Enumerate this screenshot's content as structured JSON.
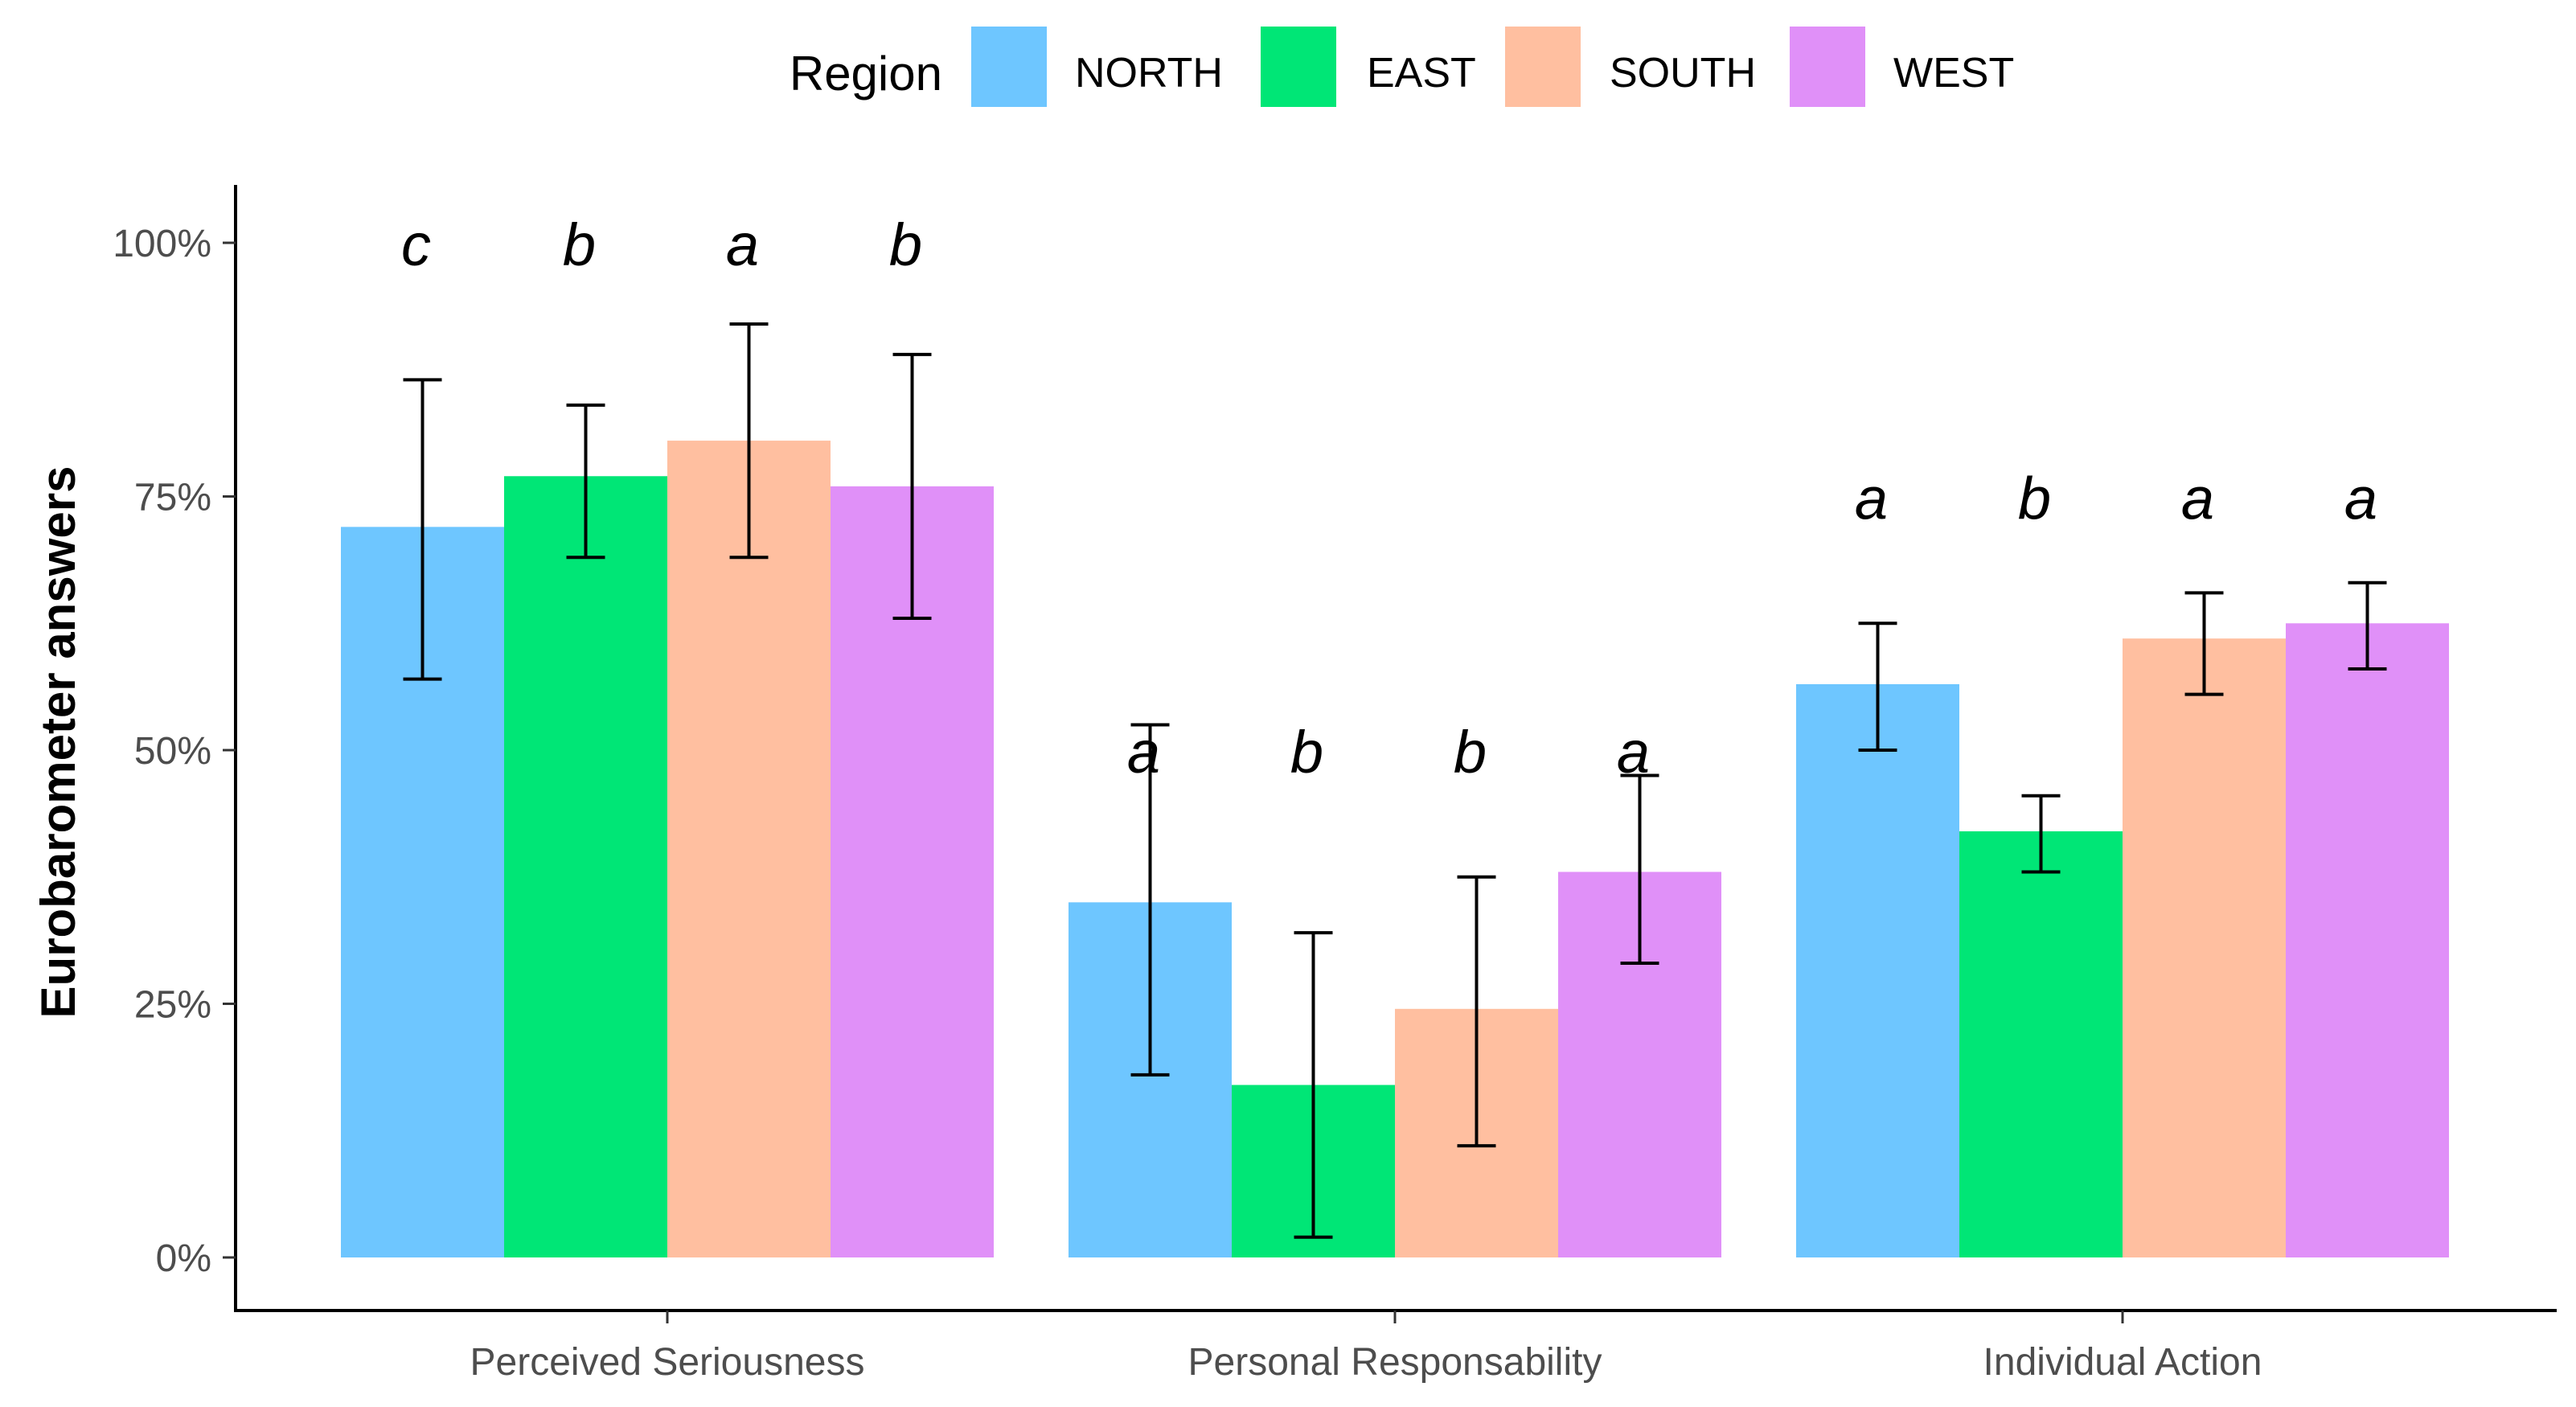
{
  "chart_data": {
    "type": "bar",
    "title": "",
    "xlabel": "",
    "ylabel": "Eurobarometer answers",
    "ylim": [
      0,
      1
    ],
    "yticks": [
      {
        "value": 0,
        "label": "0%"
      },
      {
        "value": 0.25,
        "label": "25%"
      },
      {
        "value": 0.5,
        "label": "50%"
      },
      {
        "value": 0.75,
        "label": "75%"
      },
      {
        "value": 1.0,
        "label": "100%"
      }
    ],
    "grid": false,
    "legend": {
      "title": "Region",
      "position": "top"
    },
    "categories": [
      "Perceived Seriousness",
      "Personal Responsability",
      "Individual Action"
    ],
    "series": [
      {
        "name": "NORTH",
        "color": "#6EC6FF",
        "values": [
          0.72,
          0.35,
          0.565
        ],
        "err_low": [
          0.57,
          0.18,
          0.5
        ],
        "err_high": [
          0.865,
          0.525,
          0.625
        ],
        "letters": [
          "c",
          "a",
          "a"
        ]
      },
      {
        "name": "EAST",
        "color": "#00E676",
        "values": [
          0.77,
          0.17,
          0.42
        ],
        "err_low": [
          0.69,
          0.02,
          0.38
        ],
        "err_high": [
          0.84,
          0.32,
          0.455
        ],
        "letters": [
          "b",
          "b",
          "b"
        ]
      },
      {
        "name": "SOUTH",
        "color": "#FFBFA0",
        "values": [
          0.805,
          0.245,
          0.61
        ],
        "err_low": [
          0.69,
          0.11,
          0.555
        ],
        "err_high": [
          0.92,
          0.375,
          0.655
        ],
        "letters": [
          "a",
          "b",
          "a"
        ]
      },
      {
        "name": "WEST",
        "color": "#E090F8",
        "values": [
          0.76,
          0.38,
          0.625
        ],
        "err_low": [
          0.63,
          0.29,
          0.58
        ],
        "err_high": [
          0.89,
          0.475,
          0.665
        ],
        "letters": [
          "b",
          "a",
          "a"
        ]
      }
    ],
    "letter_positions": [
      1.0,
      0.5,
      0.75
    ]
  }
}
